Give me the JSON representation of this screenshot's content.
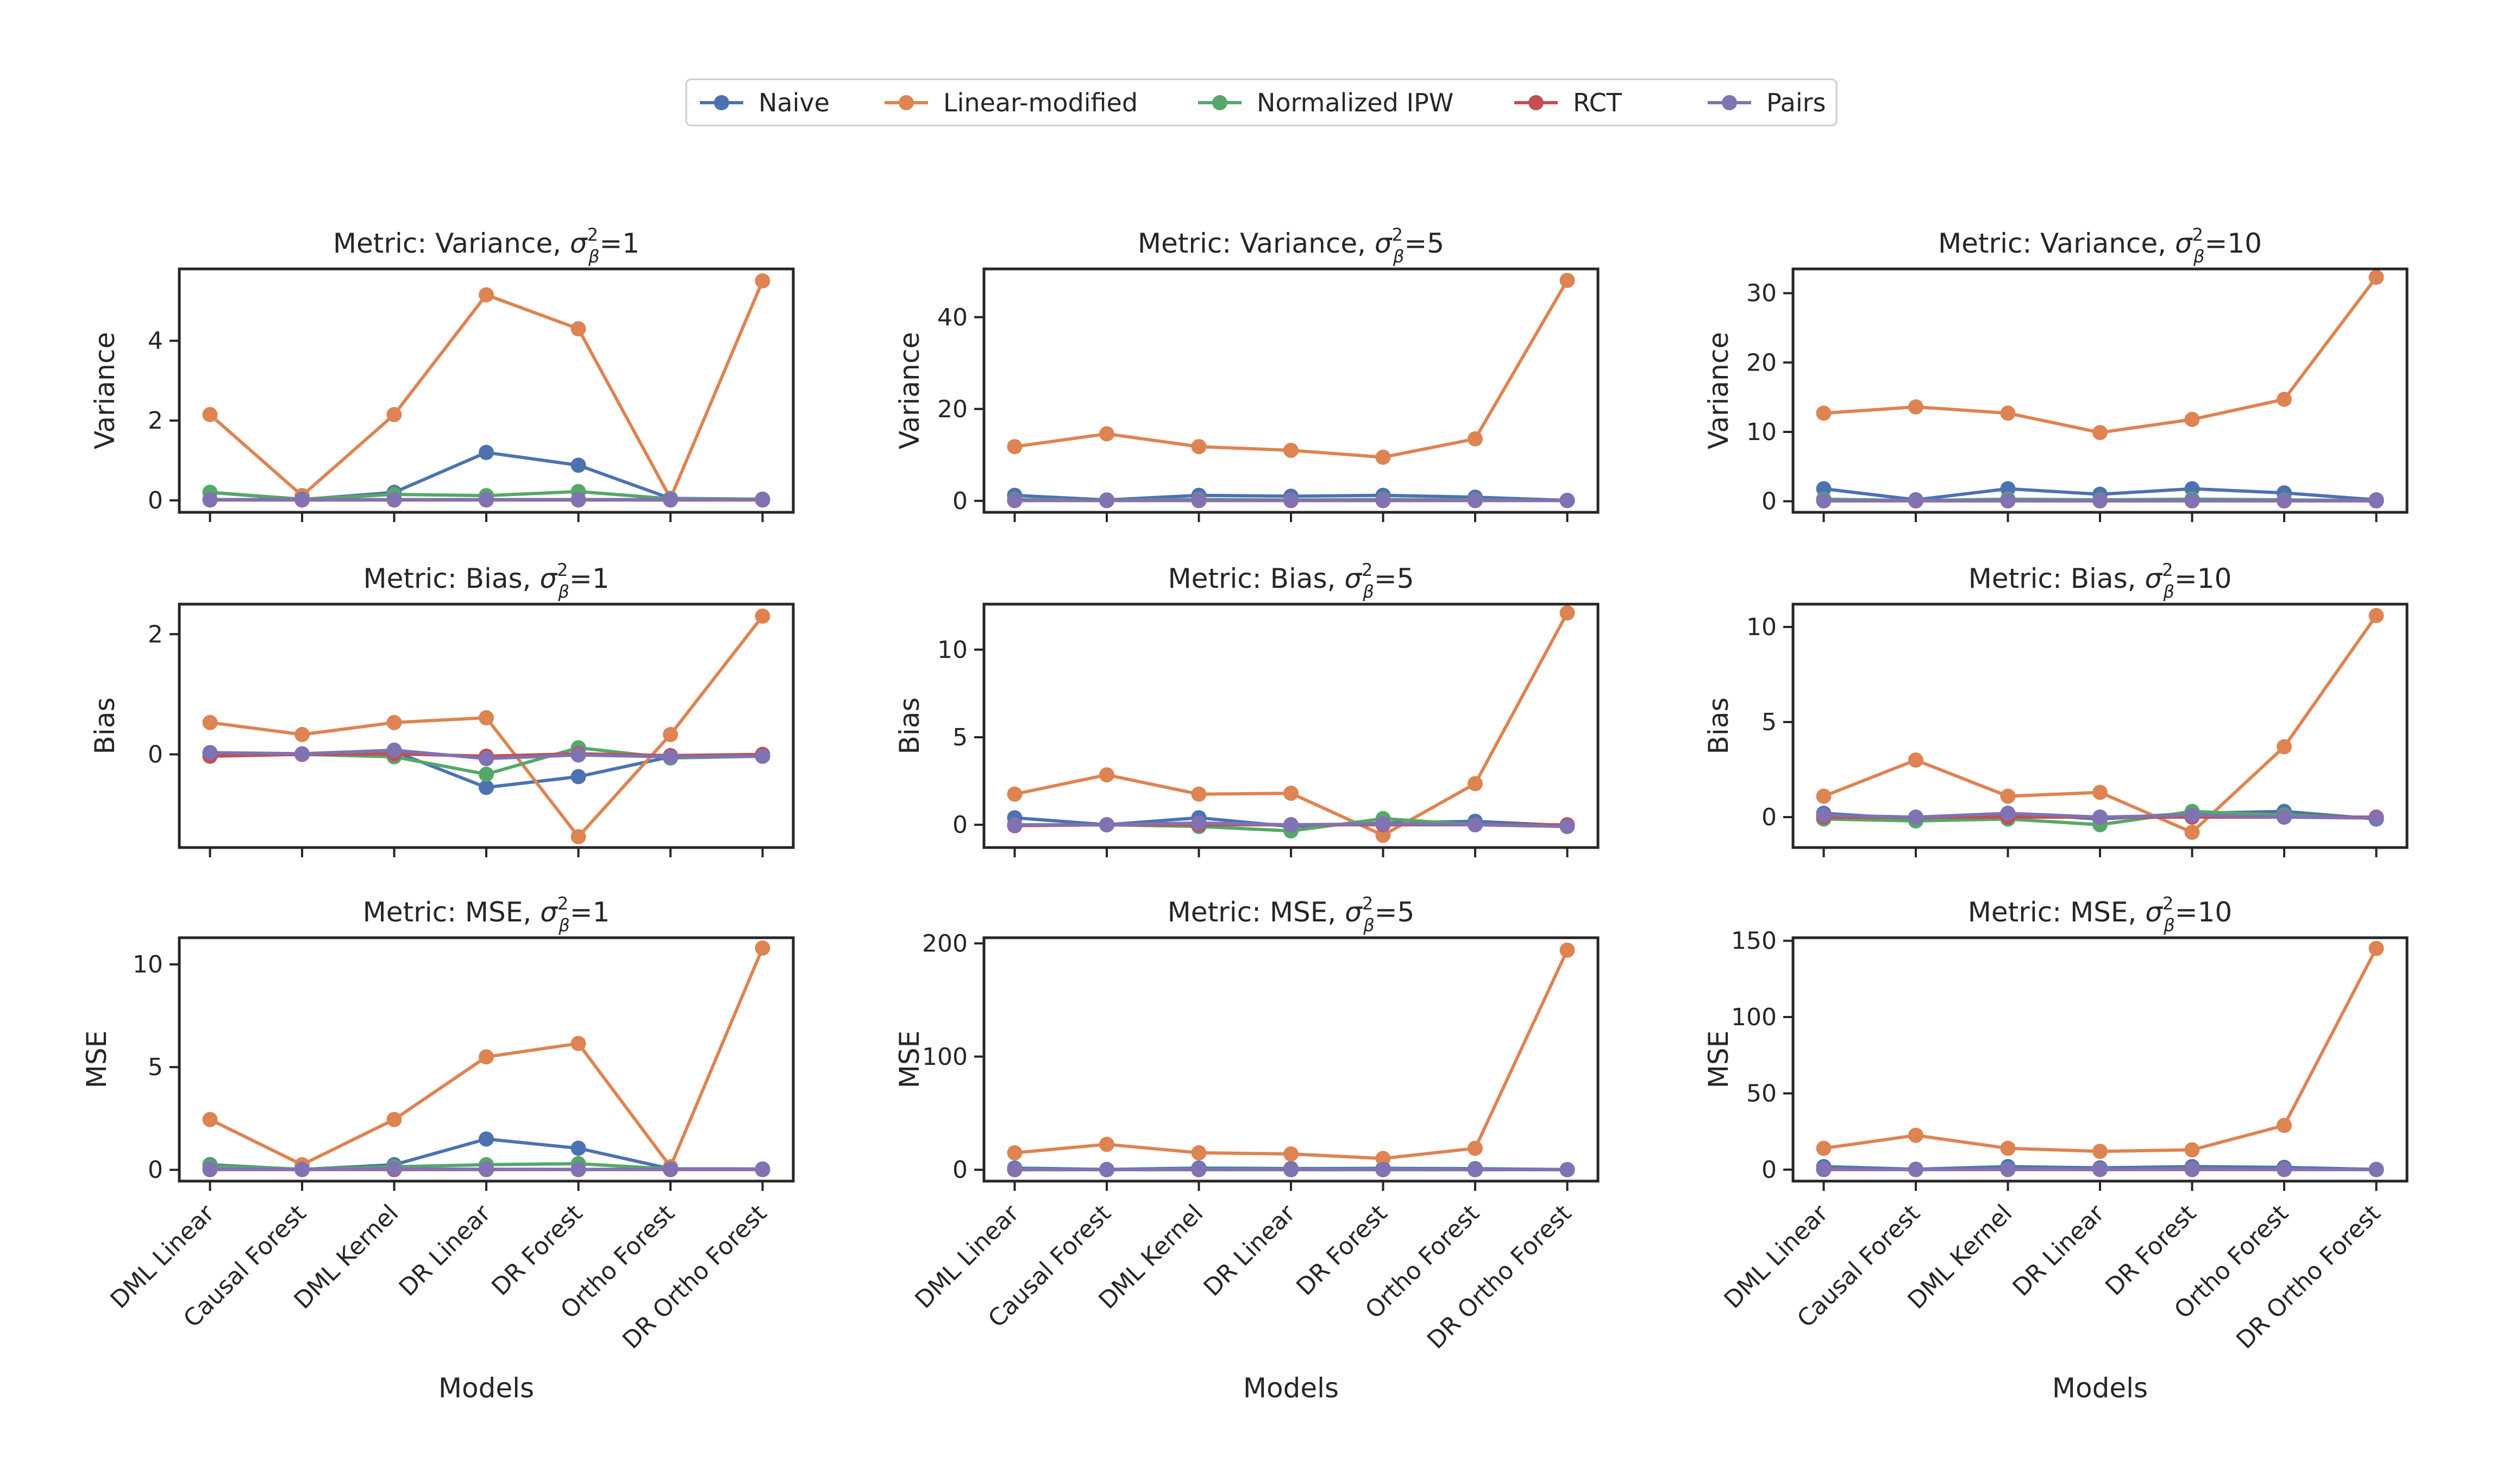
{
  "legend": {
    "items": [
      {
        "name": "Naive",
        "color": "#4c72b0"
      },
      {
        "name": "Linear-modified",
        "color": "#dd8452"
      },
      {
        "name": "Normalized IPW",
        "color": "#55a868"
      },
      {
        "name": "RCT",
        "color": "#c44e52"
      },
      {
        "name": "Pairs",
        "color": "#8172b3"
      }
    ]
  },
  "chart_data": [
    {
      "type": "line",
      "title": "Metric: Variance, σ²β=1",
      "title_prefix": "Metric: Variance, ",
      "title_sigma": "σ",
      "title_sup": "2",
      "title_sub": "β",
      "title_suffix": "=1",
      "ylabel": "Variance",
      "xlabel": "",
      "ylim": [
        -0.3,
        5.8
      ],
      "yticks": [
        0,
        2,
        4
      ],
      "categories": [
        "DML Linear",
        "Causal Forest",
        "DML Kernel",
        "DR Linear",
        "DR Forest",
        "Ortho Forest",
        "DR Ortho Forest"
      ],
      "series": [
        {
          "name": "Naive",
          "values": [
            0.2,
            0.02,
            0.2,
            1.2,
            0.88,
            0.05,
            0.03
          ]
        },
        {
          "name": "Linear-modified",
          "values": [
            2.15,
            0.12,
            2.15,
            5.15,
            4.3,
            0.05,
            5.5
          ]
        },
        {
          "name": "Normalized IPW",
          "values": [
            0.2,
            0.03,
            0.15,
            0.12,
            0.22,
            0.04,
            0.03
          ]
        },
        {
          "name": "RCT",
          "values": [
            0.01,
            0.01,
            0.01,
            0.01,
            0.01,
            0.01,
            0.01
          ]
        },
        {
          "name": "Pairs",
          "values": [
            0.02,
            0.02,
            0.02,
            0.02,
            0.02,
            0.02,
            0.02
          ]
        }
      ]
    },
    {
      "type": "line",
      "title": "Metric: Variance, σ²β=5",
      "title_prefix": "Metric: Variance, ",
      "title_sigma": "σ",
      "title_sup": "2",
      "title_sub": "β",
      "title_suffix": "=5",
      "ylabel": "Variance",
      "xlabel": "",
      "ylim": [
        -2.5,
        50.5
      ],
      "yticks": [
        0,
        20,
        40
      ],
      "categories": [
        "DML Linear",
        "Causal Forest",
        "DML Kernel",
        "DR Linear",
        "DR Forest",
        "Ortho Forest",
        "DR Ortho Forest"
      ],
      "series": [
        {
          "name": "Naive",
          "values": [
            1.2,
            0.2,
            1.2,
            1.0,
            1.2,
            0.8,
            0.1
          ]
        },
        {
          "name": "Linear-modified",
          "values": [
            11.8,
            14.6,
            11.8,
            11.0,
            9.5,
            13.5,
            48.0
          ]
        },
        {
          "name": "Normalized IPW",
          "values": [
            0.3,
            0.1,
            0.3,
            0.2,
            0.3,
            0.2,
            0.1
          ]
        },
        {
          "name": "RCT",
          "values": [
            0.05,
            0.05,
            0.05,
            0.05,
            0.05,
            0.05,
            0.05
          ]
        },
        {
          "name": "Pairs",
          "values": [
            0.1,
            0.1,
            0.1,
            0.1,
            0.1,
            0.1,
            0.1
          ]
        }
      ]
    },
    {
      "type": "line",
      "title": "Metric: Variance, σ²β=10",
      "title_prefix": "Metric: Variance, ",
      "title_sigma": "σ",
      "title_sup": "2",
      "title_sub": "β",
      "title_suffix": "=10",
      "ylabel": "Variance",
      "xlabel": "",
      "ylim": [
        -1.6,
        33.5
      ],
      "yticks": [
        0,
        10,
        20,
        30
      ],
      "categories": [
        "DML Linear",
        "Causal Forest",
        "DML Kernel",
        "DR Linear",
        "DR Forest",
        "Ortho Forest",
        "DR Ortho Forest"
      ],
      "series": [
        {
          "name": "Naive",
          "values": [
            1.8,
            0.2,
            1.8,
            1.0,
            1.8,
            1.2,
            0.2
          ]
        },
        {
          "name": "Linear-modified",
          "values": [
            12.7,
            13.6,
            12.7,
            9.9,
            11.8,
            14.7,
            32.3
          ]
        },
        {
          "name": "Normalized IPW",
          "values": [
            0.3,
            0.1,
            0.3,
            0.2,
            0.3,
            0.2,
            0.1
          ]
        },
        {
          "name": "RCT",
          "values": [
            0.05,
            0.05,
            0.05,
            0.05,
            0.05,
            0.05,
            0.05
          ]
        },
        {
          "name": "Pairs",
          "values": [
            0.1,
            0.1,
            0.1,
            0.1,
            0.1,
            0.1,
            0.1
          ]
        }
      ]
    },
    {
      "type": "line",
      "title": "Metric: Bias, σ²β=1",
      "title_prefix": "Metric: Bias, ",
      "title_sigma": "σ",
      "title_sup": "2",
      "title_sub": "β",
      "title_suffix": "=1",
      "ylabel": "Bias",
      "xlabel": "",
      "ylim": [
        -1.55,
        2.5
      ],
      "yticks": [
        0,
        2
      ],
      "categories": [
        "DML Linear",
        "Causal Forest",
        "DML Kernel",
        "DR Linear",
        "DR Forest",
        "Ortho Forest",
        "DR Ortho Forest"
      ],
      "series": [
        {
          "name": "Naive",
          "values": [
            0.02,
            0.0,
            0.05,
            -0.55,
            -0.37,
            -0.04,
            -0.03
          ]
        },
        {
          "name": "Linear-modified",
          "values": [
            0.53,
            0.33,
            0.53,
            0.61,
            -1.37,
            0.33,
            2.3
          ]
        },
        {
          "name": "Normalized IPW",
          "values": [
            -0.02,
            0.0,
            -0.04,
            -0.33,
            0.11,
            -0.06,
            -0.03
          ]
        },
        {
          "name": "RCT",
          "values": [
            -0.03,
            0.0,
            0.01,
            -0.03,
            0.01,
            -0.02,
            0.0
          ]
        },
        {
          "name": "Pairs",
          "values": [
            0.03,
            0.01,
            0.07,
            -0.07,
            -0.01,
            -0.04,
            -0.03
          ]
        }
      ]
    },
    {
      "type": "line",
      "title": "Metric: Bias, σ²β=5",
      "title_prefix": "Metric: Bias, ",
      "title_sigma": "σ",
      "title_sup": "2",
      "title_sub": "β",
      "title_suffix": "=5",
      "ylabel": "Bias",
      "xlabel": "",
      "ylim": [
        -1.3,
        12.6
      ],
      "yticks": [
        0,
        5,
        10
      ],
      "categories": [
        "DML Linear",
        "Causal Forest",
        "DML Kernel",
        "DR Linear",
        "DR Forest",
        "Ortho Forest",
        "DR Ortho Forest"
      ],
      "series": [
        {
          "name": "Naive",
          "values": [
            0.4,
            0.0,
            0.4,
            -0.1,
            0.1,
            0.2,
            -0.05
          ]
        },
        {
          "name": "Linear-modified",
          "values": [
            1.75,
            2.85,
            1.75,
            1.8,
            -0.6,
            2.35,
            12.1
          ]
        },
        {
          "name": "Normalized IPW",
          "values": [
            -0.05,
            0.0,
            -0.1,
            -0.35,
            0.35,
            0.0,
            -0.05
          ]
        },
        {
          "name": "RCT",
          "values": [
            -0.05,
            0.0,
            0.0,
            0.0,
            0.0,
            0.0,
            0.0
          ]
        },
        {
          "name": "Pairs",
          "values": [
            0.0,
            0.0,
            0.1,
            0.0,
            0.05,
            0.0,
            -0.1
          ]
        }
      ]
    },
    {
      "type": "line",
      "title": "Metric: Bias, σ²β=10",
      "title_prefix": "Metric: Bias, ",
      "title_sigma": "σ",
      "title_sup": "2",
      "title_sub": "β",
      "title_suffix": "=10",
      "ylabel": "Bias",
      "xlabel": "",
      "ylim": [
        -1.6,
        11.2
      ],
      "yticks": [
        0,
        5,
        10
      ],
      "categories": [
        "DML Linear",
        "Causal Forest",
        "DML Kernel",
        "DR Linear",
        "DR Forest",
        "Ortho Forest",
        "DR Ortho Forest"
      ],
      "series": [
        {
          "name": "Naive",
          "values": [
            0.2,
            -0.1,
            0.2,
            -0.1,
            0.2,
            0.3,
            -0.1
          ]
        },
        {
          "name": "Linear-modified",
          "values": [
            1.1,
            3.0,
            1.1,
            1.3,
            -0.8,
            3.7,
            10.6
          ]
        },
        {
          "name": "Normalized IPW",
          "values": [
            -0.1,
            -0.2,
            -0.1,
            -0.4,
            0.3,
            0.1,
            -0.05
          ]
        },
        {
          "name": "RCT",
          "values": [
            0.0,
            0.0,
            0.0,
            0.0,
            0.0,
            0.0,
            0.0
          ]
        },
        {
          "name": "Pairs",
          "values": [
            0.1,
            0.0,
            0.2,
            0.0,
            0.1,
            0.0,
            -0.05
          ]
        }
      ]
    },
    {
      "type": "line",
      "title": "Metric: MSE, σ²β=1",
      "title_prefix": "Metric: MSE, ",
      "title_sigma": "σ",
      "title_sup": "2",
      "title_sub": "β",
      "title_suffix": "=1",
      "ylabel": "MSE",
      "xlabel": "Models",
      "ylim": [
        -0.55,
        11.3
      ],
      "yticks": [
        0,
        5,
        10
      ],
      "categories": [
        "DML Linear",
        "Causal Forest",
        "DML Kernel",
        "DR Linear",
        "DR Forest",
        "Ortho Forest",
        "DR Ortho Forest"
      ],
      "series": [
        {
          "name": "Naive",
          "values": [
            0.25,
            0.02,
            0.25,
            1.5,
            1.05,
            0.05,
            0.04
          ]
        },
        {
          "name": "Linear-modified",
          "values": [
            2.45,
            0.25,
            2.45,
            5.5,
            6.15,
            0.15,
            10.8
          ]
        },
        {
          "name": "Normalized IPW",
          "values": [
            0.2,
            0.03,
            0.15,
            0.25,
            0.3,
            0.04,
            0.03
          ]
        },
        {
          "name": "RCT",
          "values": [
            0.01,
            0.01,
            0.01,
            0.01,
            0.01,
            0.01,
            0.01
          ]
        },
        {
          "name": "Pairs",
          "values": [
            0.03,
            0.02,
            0.05,
            0.03,
            0.02,
            0.03,
            0.03
          ]
        }
      ]
    },
    {
      "type": "line",
      "title": "Metric: MSE, σ²β=5",
      "title_prefix": "Metric: MSE, ",
      "title_sigma": "σ",
      "title_sup": "2",
      "title_sub": "β",
      "title_suffix": "=5",
      "ylabel": "MSE",
      "xlabel": "Models",
      "ylim": [
        -10,
        205
      ],
      "yticks": [
        0,
        100,
        200
      ],
      "categories": [
        "DML Linear",
        "Causal Forest",
        "DML Kernel",
        "DR Linear",
        "DR Forest",
        "Ortho Forest",
        "DR Ortho Forest"
      ],
      "series": [
        {
          "name": "Naive",
          "values": [
            1.5,
            0.3,
            1.5,
            1.1,
            1.3,
            1.0,
            0.2
          ]
        },
        {
          "name": "Linear-modified",
          "values": [
            15,
            22.5,
            15,
            14,
            10,
            19,
            194
          ]
        },
        {
          "name": "Normalized IPW",
          "values": [
            0.4,
            0.1,
            0.4,
            0.3,
            0.4,
            0.3,
            0.1
          ]
        },
        {
          "name": "RCT",
          "values": [
            0.1,
            0.1,
            0.1,
            0.1,
            0.1,
            0.1,
            0.1
          ]
        },
        {
          "name": "Pairs",
          "values": [
            0.2,
            0.1,
            0.2,
            0.1,
            0.2,
            0.1,
            0.1
          ]
        }
      ]
    },
    {
      "type": "line",
      "title": "Metric: MSE, σ²β=10",
      "title_prefix": "Metric: MSE, ",
      "title_sigma": "σ",
      "title_sup": "2",
      "title_sub": "β",
      "title_suffix": "=10",
      "ylabel": "MSE",
      "xlabel": "Models",
      "ylim": [
        -7.5,
        152
      ],
      "yticks": [
        0,
        50,
        100,
        150
      ],
      "categories": [
        "DML Linear",
        "Causal Forest",
        "DML Kernel",
        "DR Linear",
        "DR Forest",
        "Ortho Forest",
        "DR Ortho Forest"
      ],
      "series": [
        {
          "name": "Naive",
          "values": [
            2.0,
            0.3,
            2.0,
            1.2,
            2.0,
            1.5,
            0.2
          ]
        },
        {
          "name": "Linear-modified",
          "values": [
            14,
            22.5,
            14,
            12,
            13,
            29,
            145
          ]
        },
        {
          "name": "Normalized IPW",
          "values": [
            0.5,
            0.1,
            0.5,
            0.3,
            0.5,
            0.3,
            0.1
          ]
        },
        {
          "name": "RCT",
          "values": [
            0.1,
            0.1,
            0.1,
            0.1,
            0.1,
            0.1,
            0.1
          ]
        },
        {
          "name": "Pairs",
          "values": [
            0.3,
            0.1,
            0.3,
            0.2,
            0.3,
            0.2,
            0.1
          ]
        }
      ]
    }
  ]
}
